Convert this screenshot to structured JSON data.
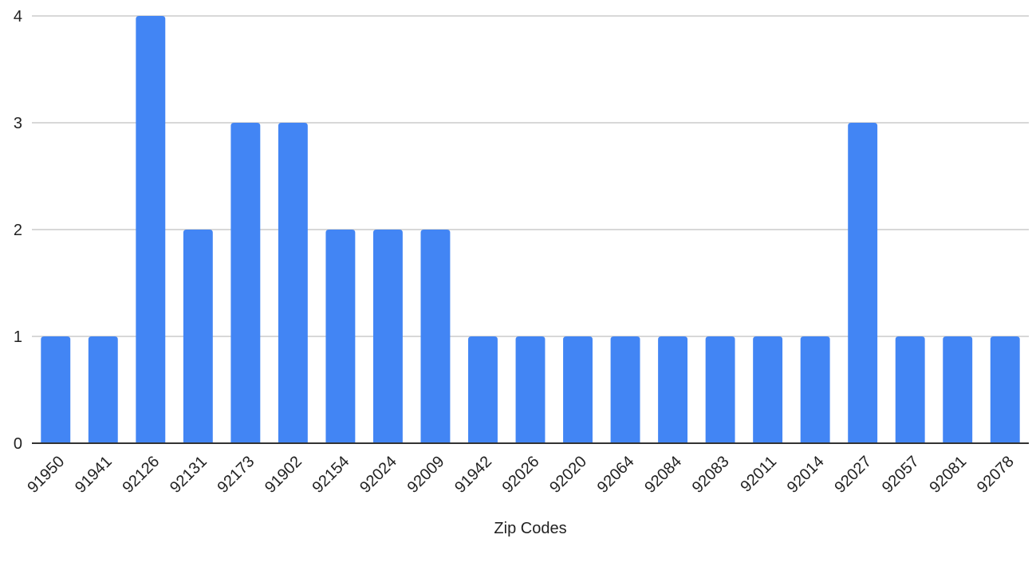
{
  "chart_data": {
    "type": "bar",
    "title": "",
    "xlabel": "Zip Codes",
    "ylabel": "",
    "categories": [
      "91950",
      "91941",
      "92126",
      "92131",
      "92173",
      "91902",
      "92154",
      "92024",
      "92009",
      "91942",
      "92026",
      "92020",
      "92064",
      "92084",
      "92083",
      "92011",
      "92014",
      "92027",
      "92057",
      "92081",
      "92078"
    ],
    "values": [
      1,
      1,
      4,
      2,
      3,
      3,
      2,
      2,
      2,
      1,
      1,
      1,
      1,
      1,
      1,
      1,
      1,
      3,
      1,
      1,
      1
    ],
    "ylim": [
      0,
      4
    ],
    "yticks": [
      0,
      1,
      2,
      3,
      4
    ],
    "grid": true,
    "bar_color": "#4285f4",
    "gridline_color": "#cccccc",
    "axis_color": "#333333"
  }
}
